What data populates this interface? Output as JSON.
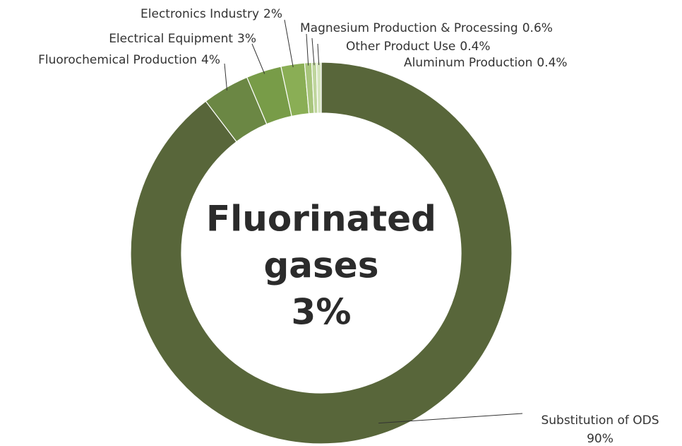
{
  "chart_data": {
    "type": "donut",
    "center_label": [
      "Fluorinated",
      "gases",
      "3%"
    ],
    "categories": [
      "Substitution of ODS",
      "Fluorochemical Production",
      "Electrical Equipment",
      "Electronics Industry",
      "Magnesium Production & Processing",
      "Other Product Use",
      "Aluminum Production"
    ],
    "values": [
      90,
      4,
      3,
      2,
      0.6,
      0.4,
      0.4
    ],
    "value_labels": [
      "90%",
      "4%",
      "3%",
      "2%",
      "0.6%",
      "0.4%",
      "0.4%"
    ],
    "colors": [
      "#58663a",
      "#6b8744",
      "#789c48",
      "#8aae55",
      "#a8c57c",
      "#bfd59d",
      "#d5e5bd"
    ]
  }
}
